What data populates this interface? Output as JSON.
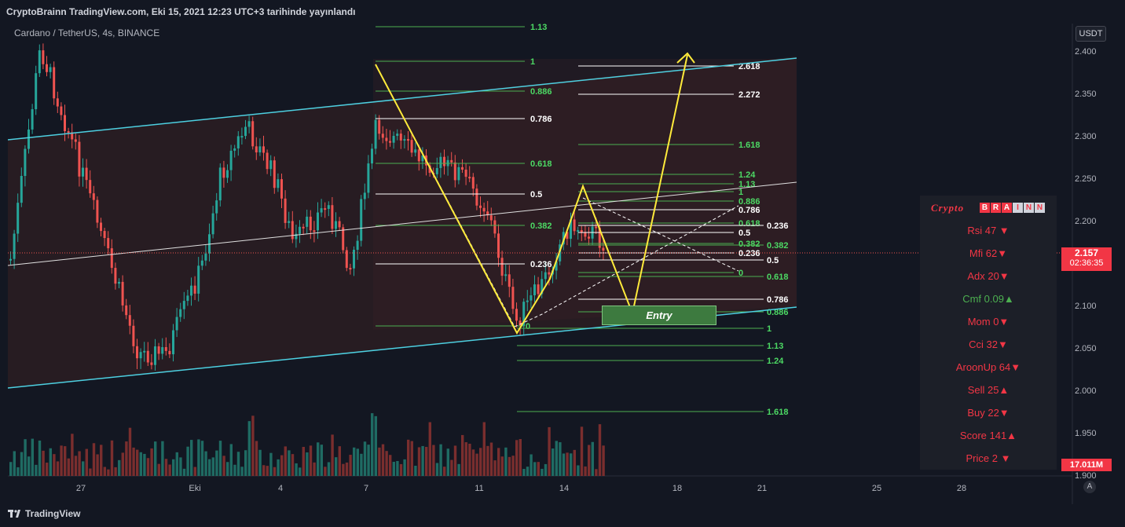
{
  "header": {
    "title": "CryptoBrainn TradingView.com, Eki 15, 2021 12:23 UTC+3 tarihinde yayınlandı",
    "symbol": "Cardano / TetherUS, 4s, BINANCE",
    "currency_button": "USDT"
  },
  "footer": {
    "brand": "TradingView",
    "auto_scale": "A"
  },
  "chart_data": {
    "type": "candlestick",
    "title": "Cardano / TetherUS, 4s, BINANCE",
    "x_tick_labels": [
      "27",
      "Eki",
      "4",
      "7",
      "11",
      "14",
      "18",
      "21",
      "25",
      "28"
    ],
    "y_tick_labels": [
      "2.400",
      "2.350",
      "2.300",
      "2.250",
      "2.200",
      "2.150",
      "2.100",
      "2.050",
      "2.000",
      "1.950",
      "1.900"
    ],
    "ylim": [
      1.9,
      2.41
    ],
    "last_price": "2.157",
    "countdown": "02:36:35",
    "volume_last": "17.011M",
    "fib_labels": [
      {
        "label": "1.13",
        "color": "#4caf50"
      },
      {
        "label": "1",
        "color": "#4caf50"
      },
      {
        "label": "0.886",
        "color": "#4caf50"
      },
      {
        "label": "0.786",
        "color": "#ffffff"
      },
      {
        "label": "0.618",
        "color": "#4caf50"
      },
      {
        "label": "0.5",
        "color": "#ffffff"
      },
      {
        "label": "0.382",
        "color": "#4caf50"
      },
      {
        "label": "0.236",
        "color": "#ffffff"
      },
      {
        "label": "0",
        "color": "#4caf50"
      },
      {
        "label": "2.618",
        "color": "#ffffff"
      },
      {
        "label": "2.272",
        "color": "#ffffff"
      },
      {
        "label": "1.618",
        "color": "#4caf50"
      },
      {
        "label": "1.24",
        "color": "#4caf50"
      },
      {
        "label": "1.13",
        "color": "#4caf50"
      },
      {
        "label": "1",
        "color": "#4caf50"
      },
      {
        "label": "0.886",
        "color": "#4caf50"
      },
      {
        "label": "0.786",
        "color": "#ffffff"
      },
      {
        "label": "0.618",
        "color": "#4caf50"
      },
      {
        "label": "0.5",
        "color": "#ffffff"
      },
      {
        "label": "0.382",
        "color": "#4caf50"
      },
      {
        "label": "0.236",
        "color": "#ffffff"
      },
      {
        "label": "0",
        "color": "#4caf50"
      },
      {
        "label": "0.236",
        "color": "#ffffff"
      },
      {
        "label": "0.382",
        "color": "#4caf50"
      },
      {
        "label": "0.5",
        "color": "#ffffff"
      },
      {
        "label": "0.618",
        "color": "#4caf50"
      },
      {
        "label": "0.786",
        "color": "#ffffff"
      },
      {
        "label": "0.886",
        "color": "#4caf50"
      },
      {
        "label": "1",
        "color": "#4caf50"
      },
      {
        "label": "1.13",
        "color": "#4caf50"
      },
      {
        "label": "1.24",
        "color": "#4caf50"
      },
      {
        "label": "1.618",
        "color": "#4caf50"
      }
    ],
    "annotations": {
      "entry": "Entry"
    },
    "colors": {
      "up": "#26a69a",
      "down": "#ef5350",
      "pattern": "#ffeb3b",
      "channel": "#4dd0e1",
      "background": "#131722"
    }
  },
  "indicator_panel": {
    "title": "Crypto",
    "brand_letters": [
      "B",
      "R",
      "A",
      "I",
      "N",
      "N"
    ],
    "rows": [
      {
        "text": "Rsi   47 ▼",
        "color": "#f23645"
      },
      {
        "text": "Mfi   62▼",
        "color": "#f23645"
      },
      {
        "text": "Adx   20▼",
        "color": "#f23645"
      },
      {
        "text": "Cmf 0.09▲",
        "color": "#4caf50"
      },
      {
        "text": "Mom   0▼",
        "color": "#f23645"
      },
      {
        "text": "Cci    32▼",
        "color": "#f23645"
      },
      {
        "text": "AroonUp 64▼",
        "color": "#f23645"
      },
      {
        "text": "Sell   25▲",
        "color": "#f23645"
      },
      {
        "text": "Buy   22▼",
        "color": "#f23645"
      },
      {
        "text": "Score   141▲",
        "color": "#f23645"
      },
      {
        "text": "Price   2 ▼",
        "color": "#f23645"
      }
    ]
  }
}
